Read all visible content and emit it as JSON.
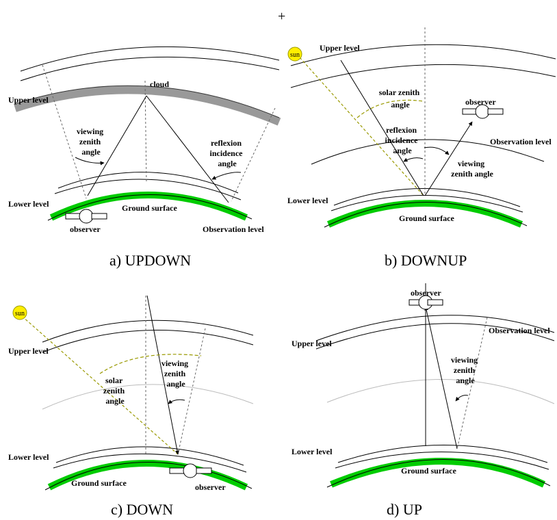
{
  "top_mark": "+",
  "colors": {
    "ground": "#00cc00",
    "cloud": "#999999",
    "sun": "#ffee00",
    "solar_ray": "#999900"
  },
  "panels": {
    "a": {
      "caption": "a)   UPDOWN",
      "upper_level": "Upper level",
      "cloud": "cloud",
      "viewing": [
        "viewing",
        "zenith",
        "angle"
      ],
      "reflexion": [
        "reflexion",
        "incidence",
        "angle"
      ],
      "lower_level": "Lower level",
      "ground": "Ground surface",
      "observer": "observer",
      "observation_level": "Observation level"
    },
    "b": {
      "caption": "b)   DOWNUP",
      "sun": "sun",
      "upper_level": "Upper level",
      "solar": [
        "solar zenith",
        "angle"
      ],
      "observer": "observer",
      "reflexion": [
        "reflexion",
        "incidence",
        "angle"
      ],
      "observation_level": "Observation level",
      "viewing": [
        "viewing",
        "zenith angle"
      ],
      "lower_level": "Lower level",
      "ground": "Ground surface"
    },
    "c": {
      "caption": "c)   DOWN",
      "sun": "sun",
      "upper_level": "Upper level",
      "solar": [
        "solar",
        "zenith",
        "angle"
      ],
      "viewing": [
        "viewing",
        "zenith",
        "angle"
      ],
      "lower_level": "Lower level",
      "ground": "Ground surface",
      "observer": "observer"
    },
    "d": {
      "caption": "d)   UP",
      "observer": "observer",
      "upper_level": "Upper level",
      "observation_level": "Observation level",
      "viewing": [
        "viewing",
        "zenith",
        "angle"
      ],
      "lower_level": "Lower level",
      "ground": "Ground surface"
    }
  }
}
